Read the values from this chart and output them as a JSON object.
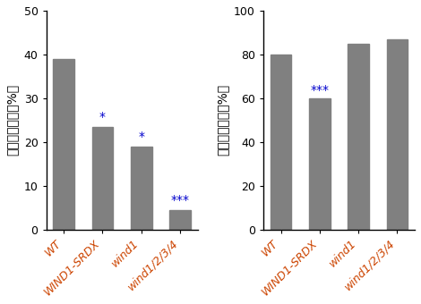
{
  "left": {
    "categories": [
      "WT",
      "WIND1-SRDX",
      "wind1",
      "wind1/2/3/4"
    ],
    "values": [
      39,
      23.5,
      19,
      4.5
    ],
    "ylabel": "道管再結合率（%）",
    "ylim": [
      0,
      50
    ],
    "yticks": [
      0,
      10,
      20,
      30,
      40,
      50
    ],
    "significance": [
      "",
      "*",
      "*",
      "***"
    ]
  },
  "right": {
    "categories": [
      "WT",
      "WIND1-SRDX",
      "wind1",
      "wind1/2/3/4"
    ],
    "values": [
      80,
      60,
      85,
      87
    ],
    "ylabel": "組織再接着率（%）",
    "ylim": [
      0,
      100
    ],
    "yticks": [
      0,
      20,
      40,
      60,
      80,
      100
    ],
    "significance": [
      "",
      "***",
      "",
      ""
    ]
  },
  "bar_color": "#808080",
  "bar_width": 0.55,
  "tick_label_color": "#cc4400",
  "sig_color": "#0000cc",
  "background_color": "#ffffff",
  "label_fontsize": 10,
  "tick_fontsize": 9,
  "sig_fontsize": 10,
  "xtick_rotation": 45
}
